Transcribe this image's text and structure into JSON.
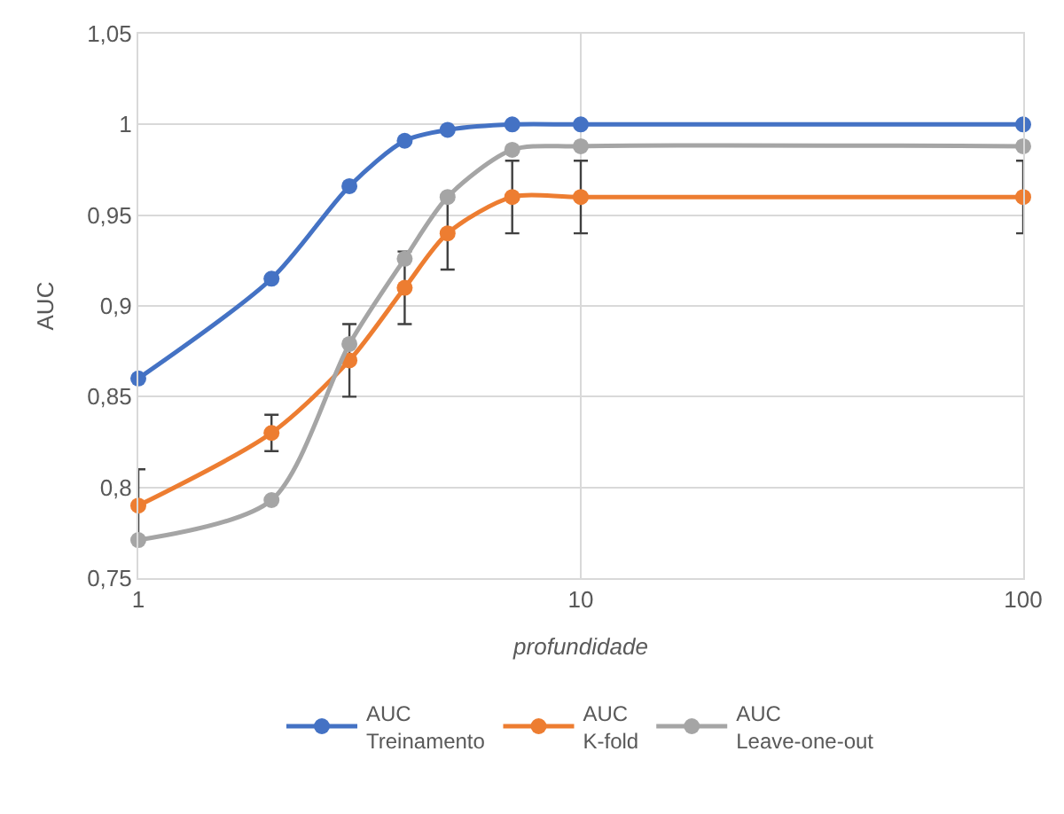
{
  "chart_data": {
    "type": "line",
    "xlabel": "profundidade",
    "ylabel": "AUC",
    "x": [
      1,
      2,
      3,
      4,
      5,
      7,
      10,
      100
    ],
    "series": [
      {
        "name": "AUC\nTreinamento",
        "color": "#4472c4",
        "values": [
          0.86,
          0.915,
          0.966,
          0.991,
          0.997,
          1.0,
          1.0,
          1.0
        ]
      },
      {
        "name": "AUC\nK-fold",
        "color": "#ed7d31",
        "values": [
          0.79,
          0.83,
          0.87,
          0.91,
          0.94,
          0.96,
          0.96,
          0.96
        ],
        "errors": [
          0.02,
          0.01,
          0.02,
          0.02,
          0.02,
          0.02,
          0.02,
          0.02
        ]
      },
      {
        "name": "AUC\nLeave-one-out",
        "color": "#a5a5a5",
        "values": [
          0.771,
          0.793,
          0.879,
          0.926,
          0.96,
          0.986,
          0.988,
          0.988
        ]
      }
    ],
    "log": "x",
    "xlim": [
      1,
      100
    ],
    "xticks": [
      1,
      10,
      100
    ],
    "ylim": [
      0.75,
      1.05
    ],
    "yticks": [
      {
        "value": 0.75,
        "label": "0,75"
      },
      {
        "value": 0.8,
        "label": "0,8"
      },
      {
        "value": 0.85,
        "label": "0,85"
      },
      {
        "value": 0.9,
        "label": "0,9"
      },
      {
        "value": 0.95,
        "label": "0,95"
      },
      {
        "value": 1.0,
        "label": "1"
      },
      {
        "value": 1.05,
        "label": "1,05"
      }
    ],
    "grid": true,
    "legend": "bottom",
    "marker": "circle",
    "line_style": "solid"
  }
}
